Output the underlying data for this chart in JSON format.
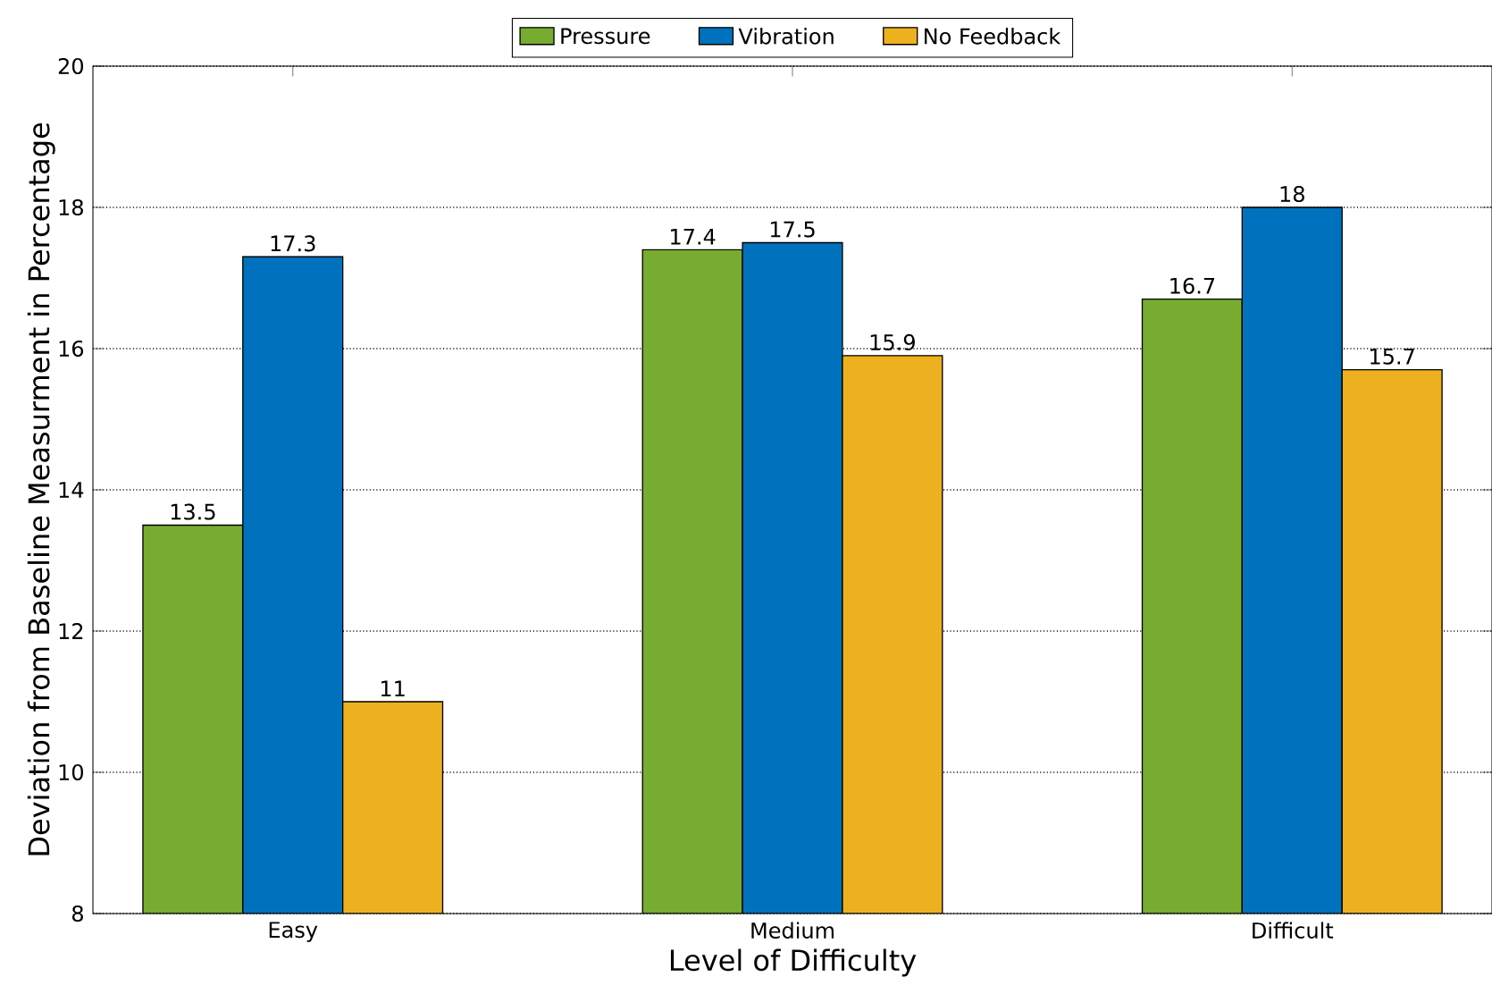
{
  "chart_data": {
    "type": "bar",
    "xlabel": "Level of Difficulty",
    "ylabel": "Deviation from Baseline Measurment in Percentage",
    "categories": [
      "Easy",
      "Medium",
      "Difficult"
    ],
    "series": [
      {
        "name": "Pressure",
        "color": "#77ac30",
        "values": [
          13.5,
          17.4,
          16.7
        ]
      },
      {
        "name": "Vibration",
        "color": "#0072bd",
        "values": [
          17.3,
          17.5,
          18
        ]
      },
      {
        "name": "No Feedback",
        "color": "#edb120",
        "values": [
          11,
          15.9,
          15.7
        ]
      }
    ],
    "ylim": [
      8,
      20
    ],
    "yticks": [
      8,
      10,
      12,
      14,
      16,
      18,
      20
    ],
    "grid": "y",
    "legend": "top",
    "data_labels": true
  }
}
